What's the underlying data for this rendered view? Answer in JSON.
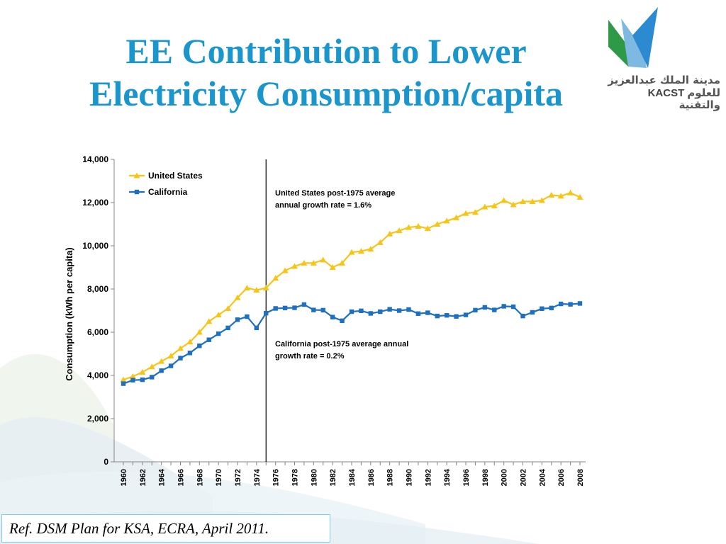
{
  "slide": {
    "title_line1": "EE Contribution to Lower",
    "title_line2": "Electricity Consumption/capita",
    "reference": "Ref. DSM Plan for KSA, ECRA, April  2011.",
    "colors": {
      "title": "#1a96cc",
      "us": "#f5c518",
      "ca": "#1f6fc0"
    }
  },
  "logo": {
    "arabic_line1": "مدينة الملك عبدالعزيز",
    "arabic_line2": "للعلوم والتقنية",
    "abbr": "KACST"
  },
  "chart_data": {
    "type": "line",
    "title": "",
    "xlabel": "",
    "ylabel": "Consumption (kWh per capita)",
    "ylim": [
      0,
      14000
    ],
    "yticks": [
      "0",
      "2,000",
      "4,000",
      "6,000",
      "8,000",
      "10,000",
      "12,000",
      "14,000"
    ],
    "xticks": [
      "1960",
      "1962",
      "1964",
      "1966",
      "1968",
      "1970",
      "1972",
      "1974",
      "1976",
      "1978",
      "1980",
      "1982",
      "1984",
      "1986",
      "1988",
      "1990",
      "1992",
      "1994",
      "1996",
      "1998",
      "2000",
      "2002",
      "2004",
      "2006",
      "2008"
    ],
    "grid": false,
    "legend": "top-left",
    "x": [
      1960,
      1961,
      1962,
      1963,
      1964,
      1965,
      1966,
      1967,
      1968,
      1969,
      1970,
      1971,
      1972,
      1973,
      1974,
      1975,
      1976,
      1977,
      1978,
      1979,
      1980,
      1981,
      1982,
      1983,
      1984,
      1985,
      1986,
      1987,
      1988,
      1989,
      1990,
      1991,
      1992,
      1993,
      1994,
      1995,
      1996,
      1997,
      1998,
      1999,
      2000,
      2001,
      2002,
      2003,
      2004,
      2005,
      2006,
      2007,
      2008
    ],
    "series": [
      {
        "name": "United States",
        "color": "#f5c518",
        "marker": "triangle",
        "values": [
          3800,
          3950,
          4150,
          4400,
          4650,
          4900,
          5250,
          5550,
          6000,
          6500,
          6800,
          7100,
          7600,
          8050,
          7950,
          8050,
          8500,
          8850,
          9050,
          9200,
          9200,
          9350,
          9000,
          9200,
          9700,
          9750,
          9850,
          10150,
          10550,
          10700,
          10850,
          10900,
          10800,
          11000,
          11150,
          11300,
          11500,
          11550,
          11800,
          11850,
          12100,
          11900,
          12050,
          12050,
          12100,
          12350,
          12300,
          12450,
          12250
        ]
      },
      {
        "name": "California",
        "color": "#1f6fc0",
        "marker": "square",
        "values": [
          3620,
          3780,
          3800,
          3920,
          4220,
          4440,
          4800,
          5040,
          5370,
          5650,
          5930,
          6200,
          6580,
          6720,
          6200,
          6880,
          7100,
          7120,
          7130,
          7280,
          7030,
          7020,
          6700,
          6530,
          6950,
          6990,
          6870,
          6950,
          7060,
          7000,
          7050,
          6860,
          6900,
          6750,
          6780,
          6730,
          6800,
          7020,
          7150,
          7030,
          7200,
          7180,
          6750,
          6920,
          7090,
          7120,
          7310,
          7290,
          7330
        ]
      }
    ],
    "marker_line_year": 1975,
    "annotations": [
      {
        "text_line1": "United States post-1975 average",
        "text_line2": "annual growth rate = 1.6%"
      },
      {
        "text_line1": "California post-1975 average annual",
        "text_line2": "growth rate = 0.2%"
      }
    ]
  }
}
